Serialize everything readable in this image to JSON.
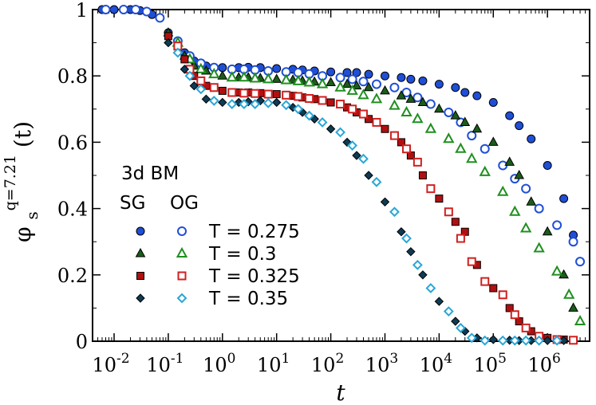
{
  "chart_data": {
    "type": "scatter",
    "xscale": "log",
    "xlim": [
      0.004,
      6000000
    ],
    "ylim": [
      0,
      1
    ],
    "xlabel": "t",
    "ylabel": {
      "base": "φ",
      "sub": "s",
      "sup": "q=7.21",
      "arg": "(t)"
    },
    "x_ticks": [
      {
        "value": 0.01,
        "base": "10",
        "exp": "-2"
      },
      {
        "value": 0.1,
        "base": "10",
        "exp": "-1"
      },
      {
        "value": 1,
        "base": "10",
        "exp": "0"
      },
      {
        "value": 10,
        "base": "10",
        "exp": "1"
      },
      {
        "value": 100,
        "base": "10",
        "exp": "2"
      },
      {
        "value": 1000,
        "base": "10",
        "exp": "3"
      },
      {
        "value": 10000,
        "base": "10",
        "exp": "4"
      },
      {
        "value": 100000,
        "base": "10",
        "exp": "5"
      },
      {
        "value": 1000000,
        "base": "10",
        "exp": "6"
      }
    ],
    "y_ticks": [
      {
        "value": 0,
        "label": "0"
      },
      {
        "value": 0.2,
        "label": "0.2"
      },
      {
        "value": 0.4,
        "label": "0.4"
      },
      {
        "value": 0.6,
        "label": "0.6"
      },
      {
        "value": 0.8,
        "label": "0.8"
      },
      {
        "value": 1,
        "label": "1"
      }
    ],
    "legend": {
      "title": "3d BM",
      "col1": "SG",
      "col2": "OG",
      "position": "left-middle",
      "entries": [
        "T = 0.275",
        "T = 0.3",
        "T = 0.325",
        "T = 0.35"
      ]
    },
    "series": [
      {
        "name": "SG T = 0.275",
        "marker": "circle",
        "filled": true,
        "color": "#1f4fd6",
        "x": [
          0.006,
          0.01,
          0.02,
          0.03,
          0.05,
          0.1,
          0.2,
          0.3,
          0.5,
          1,
          2,
          3,
          5,
          10,
          20,
          30,
          50,
          100,
          200,
          300,
          500,
          1000,
          2000,
          3000,
          5000,
          10000,
          20000,
          30000,
          50000,
          100000,
          200000,
          300000,
          500000,
          1000000,
          2000000,
          3000000
        ],
        "y": [
          1,
          1,
          1,
          0.997,
          0.985,
          0.93,
          0.87,
          0.845,
          0.83,
          0.825,
          0.825,
          0.826,
          0.825,
          0.822,
          0.82,
          0.818,
          0.815,
          0.812,
          0.81,
          0.81,
          0.805,
          0.8,
          0.795,
          0.79,
          0.785,
          0.775,
          0.765,
          0.75,
          0.74,
          0.72,
          0.68,
          0.65,
          0.61,
          0.53,
          0.43,
          0.32
        ]
      },
      {
        "name": "OG T = 0.275",
        "marker": "circle",
        "filled": false,
        "color": "#1f4fd6",
        "x": [
          0.007,
          0.015,
          0.025,
          0.04,
          0.07,
          0.15,
          0.25,
          0.4,
          0.7,
          1.5,
          2.5,
          4,
          7,
          15,
          25,
          40,
          70,
          150,
          250,
          400,
          700,
          1500,
          2500,
          4000,
          7000,
          15000,
          25000,
          40000,
          70000,
          150000,
          250000,
          400000,
          700000,
          1500000,
          3000000,
          4000000
        ],
        "y": [
          1,
          1,
          1,
          0.994,
          0.975,
          0.905,
          0.86,
          0.838,
          0.825,
          0.82,
          0.82,
          0.818,
          0.815,
          0.812,
          0.81,
          0.806,
          0.8,
          0.795,
          0.79,
          0.783,
          0.775,
          0.765,
          0.75,
          0.735,
          0.715,
          0.69,
          0.66,
          0.62,
          0.58,
          0.53,
          0.49,
          0.46,
          0.4,
          0.35,
          0.3,
          0.24
        ]
      },
      {
        "name": "SG T = 0.3",
        "marker": "triangle",
        "filled": true,
        "color": "#1a5c1a",
        "x": [
          0.1,
          0.2,
          0.3,
          0.5,
          1,
          2,
          3,
          5,
          10,
          20,
          30,
          50,
          100,
          200,
          300,
          500,
          1000,
          2000,
          3000,
          5000,
          10000,
          20000,
          30000,
          50000,
          100000,
          200000,
          300000,
          500000,
          1000000,
          2000000,
          3000000
        ],
        "y": [
          0.93,
          0.86,
          0.83,
          0.815,
          0.8,
          0.795,
          0.795,
          0.793,
          0.79,
          0.788,
          0.785,
          0.782,
          0.78,
          0.775,
          0.77,
          0.765,
          0.755,
          0.74,
          0.73,
          0.72,
          0.7,
          0.68,
          0.66,
          0.64,
          0.6,
          0.54,
          0.5,
          0.42,
          0.33,
          0.2,
          0.1
        ]
      },
      {
        "name": "OG T = 0.3",
        "marker": "triangle",
        "filled": false,
        "color": "#1f8f1f",
        "x": [
          0.15,
          0.25,
          0.4,
          0.7,
          1.5,
          2.5,
          4,
          7,
          15,
          25,
          40,
          70,
          150,
          250,
          400,
          700,
          1500,
          2500,
          4000,
          7000,
          15000,
          25000,
          40000,
          70000,
          150000,
          250000,
          400000,
          700000,
          1500000,
          2500000,
          4000000
        ],
        "y": [
          0.9,
          0.85,
          0.82,
          0.805,
          0.795,
          0.795,
          0.792,
          0.79,
          0.787,
          0.784,
          0.78,
          0.775,
          0.765,
          0.755,
          0.742,
          0.73,
          0.71,
          0.69,
          0.67,
          0.64,
          0.61,
          0.58,
          0.55,
          0.51,
          0.45,
          0.39,
          0.34,
          0.28,
          0.21,
          0.14,
          0.06
        ]
      },
      {
        "name": "SG T = 0.325",
        "marker": "square",
        "filled": true,
        "color": "#b01010",
        "x": [
          0.1,
          0.2,
          0.3,
          0.5,
          1,
          2,
          3,
          5,
          10,
          20,
          30,
          50,
          100,
          200,
          300,
          500,
          1000,
          2000,
          3000,
          5000,
          10000,
          20000,
          30000,
          50000,
          100000,
          200000,
          300000,
          500000,
          1000000,
          2000000
        ],
        "y": [
          0.92,
          0.85,
          0.8,
          0.77,
          0.755,
          0.75,
          0.75,
          0.748,
          0.745,
          0.74,
          0.735,
          0.73,
          0.72,
          0.705,
          0.69,
          0.67,
          0.64,
          0.6,
          0.56,
          0.5,
          0.43,
          0.36,
          0.33,
          0.23,
          0.16,
          0.1,
          0.06,
          0.03,
          0.01,
          0.005
        ]
      },
      {
        "name": "OG T = 0.325",
        "marker": "square",
        "filled": false,
        "color": "#d02020",
        "x": [
          0.15,
          0.25,
          0.4,
          0.7,
          1.5,
          2.5,
          4,
          7,
          15,
          25,
          40,
          70,
          150,
          250,
          400,
          700,
          1500,
          2500,
          4000,
          7000,
          15000,
          25000,
          40000,
          70000,
          150000,
          250000,
          400000,
          700000,
          1500000,
          3000000
        ],
        "y": [
          0.89,
          0.82,
          0.785,
          0.765,
          0.75,
          0.748,
          0.747,
          0.745,
          0.742,
          0.738,
          0.732,
          0.726,
          0.715,
          0.7,
          0.685,
          0.66,
          0.62,
          0.58,
          0.54,
          0.46,
          0.39,
          0.31,
          0.24,
          0.18,
          0.14,
          0.08,
          0.04,
          0.015,
          0.005,
          0.003
        ]
      },
      {
        "name": "SG T = 0.35",
        "marker": "diamond",
        "filled": true,
        "color": "#0e3b55",
        "x": [
          0.1,
          0.2,
          0.3,
          0.5,
          1,
          2,
          3,
          5,
          10,
          20,
          30,
          50,
          100,
          200,
          300,
          500,
          1000,
          2000,
          3000,
          5000,
          10000,
          20000,
          30000,
          50000,
          100000,
          200000,
          300000,
          500000,
          1000000,
          2000000
        ],
        "y": [
          0.9,
          0.82,
          0.77,
          0.73,
          0.72,
          0.72,
          0.722,
          0.725,
          0.72,
          0.705,
          0.69,
          0.67,
          0.64,
          0.6,
          0.56,
          0.5,
          0.42,
          0.33,
          0.27,
          0.2,
          0.12,
          0.06,
          0.03,
          0.01,
          0.005,
          0.003,
          0.002,
          0.002,
          0.002,
          0.002
        ]
      },
      {
        "name": "OG T = 0.35",
        "marker": "diamond",
        "filled": false,
        "color": "#2aa6d6",
        "x": [
          0.15,
          0.25,
          0.4,
          0.7,
          1.5,
          2.5,
          4,
          7,
          15,
          25,
          40,
          70,
          150,
          250,
          400,
          700,
          1500,
          2500,
          4000,
          7000,
          15000,
          25000,
          40000,
          70000,
          150000,
          250000,
          400000,
          700000,
          1500000
        ],
        "y": [
          0.87,
          0.8,
          0.76,
          0.725,
          0.715,
          0.715,
          0.715,
          0.718,
          0.712,
          0.7,
          0.68,
          0.66,
          0.63,
          0.59,
          0.55,
          0.48,
          0.39,
          0.31,
          0.23,
          0.16,
          0.09,
          0.04,
          0.01,
          0.002,
          0.002,
          0.002,
          0.002,
          0.002,
          0.002
        ]
      }
    ]
  }
}
